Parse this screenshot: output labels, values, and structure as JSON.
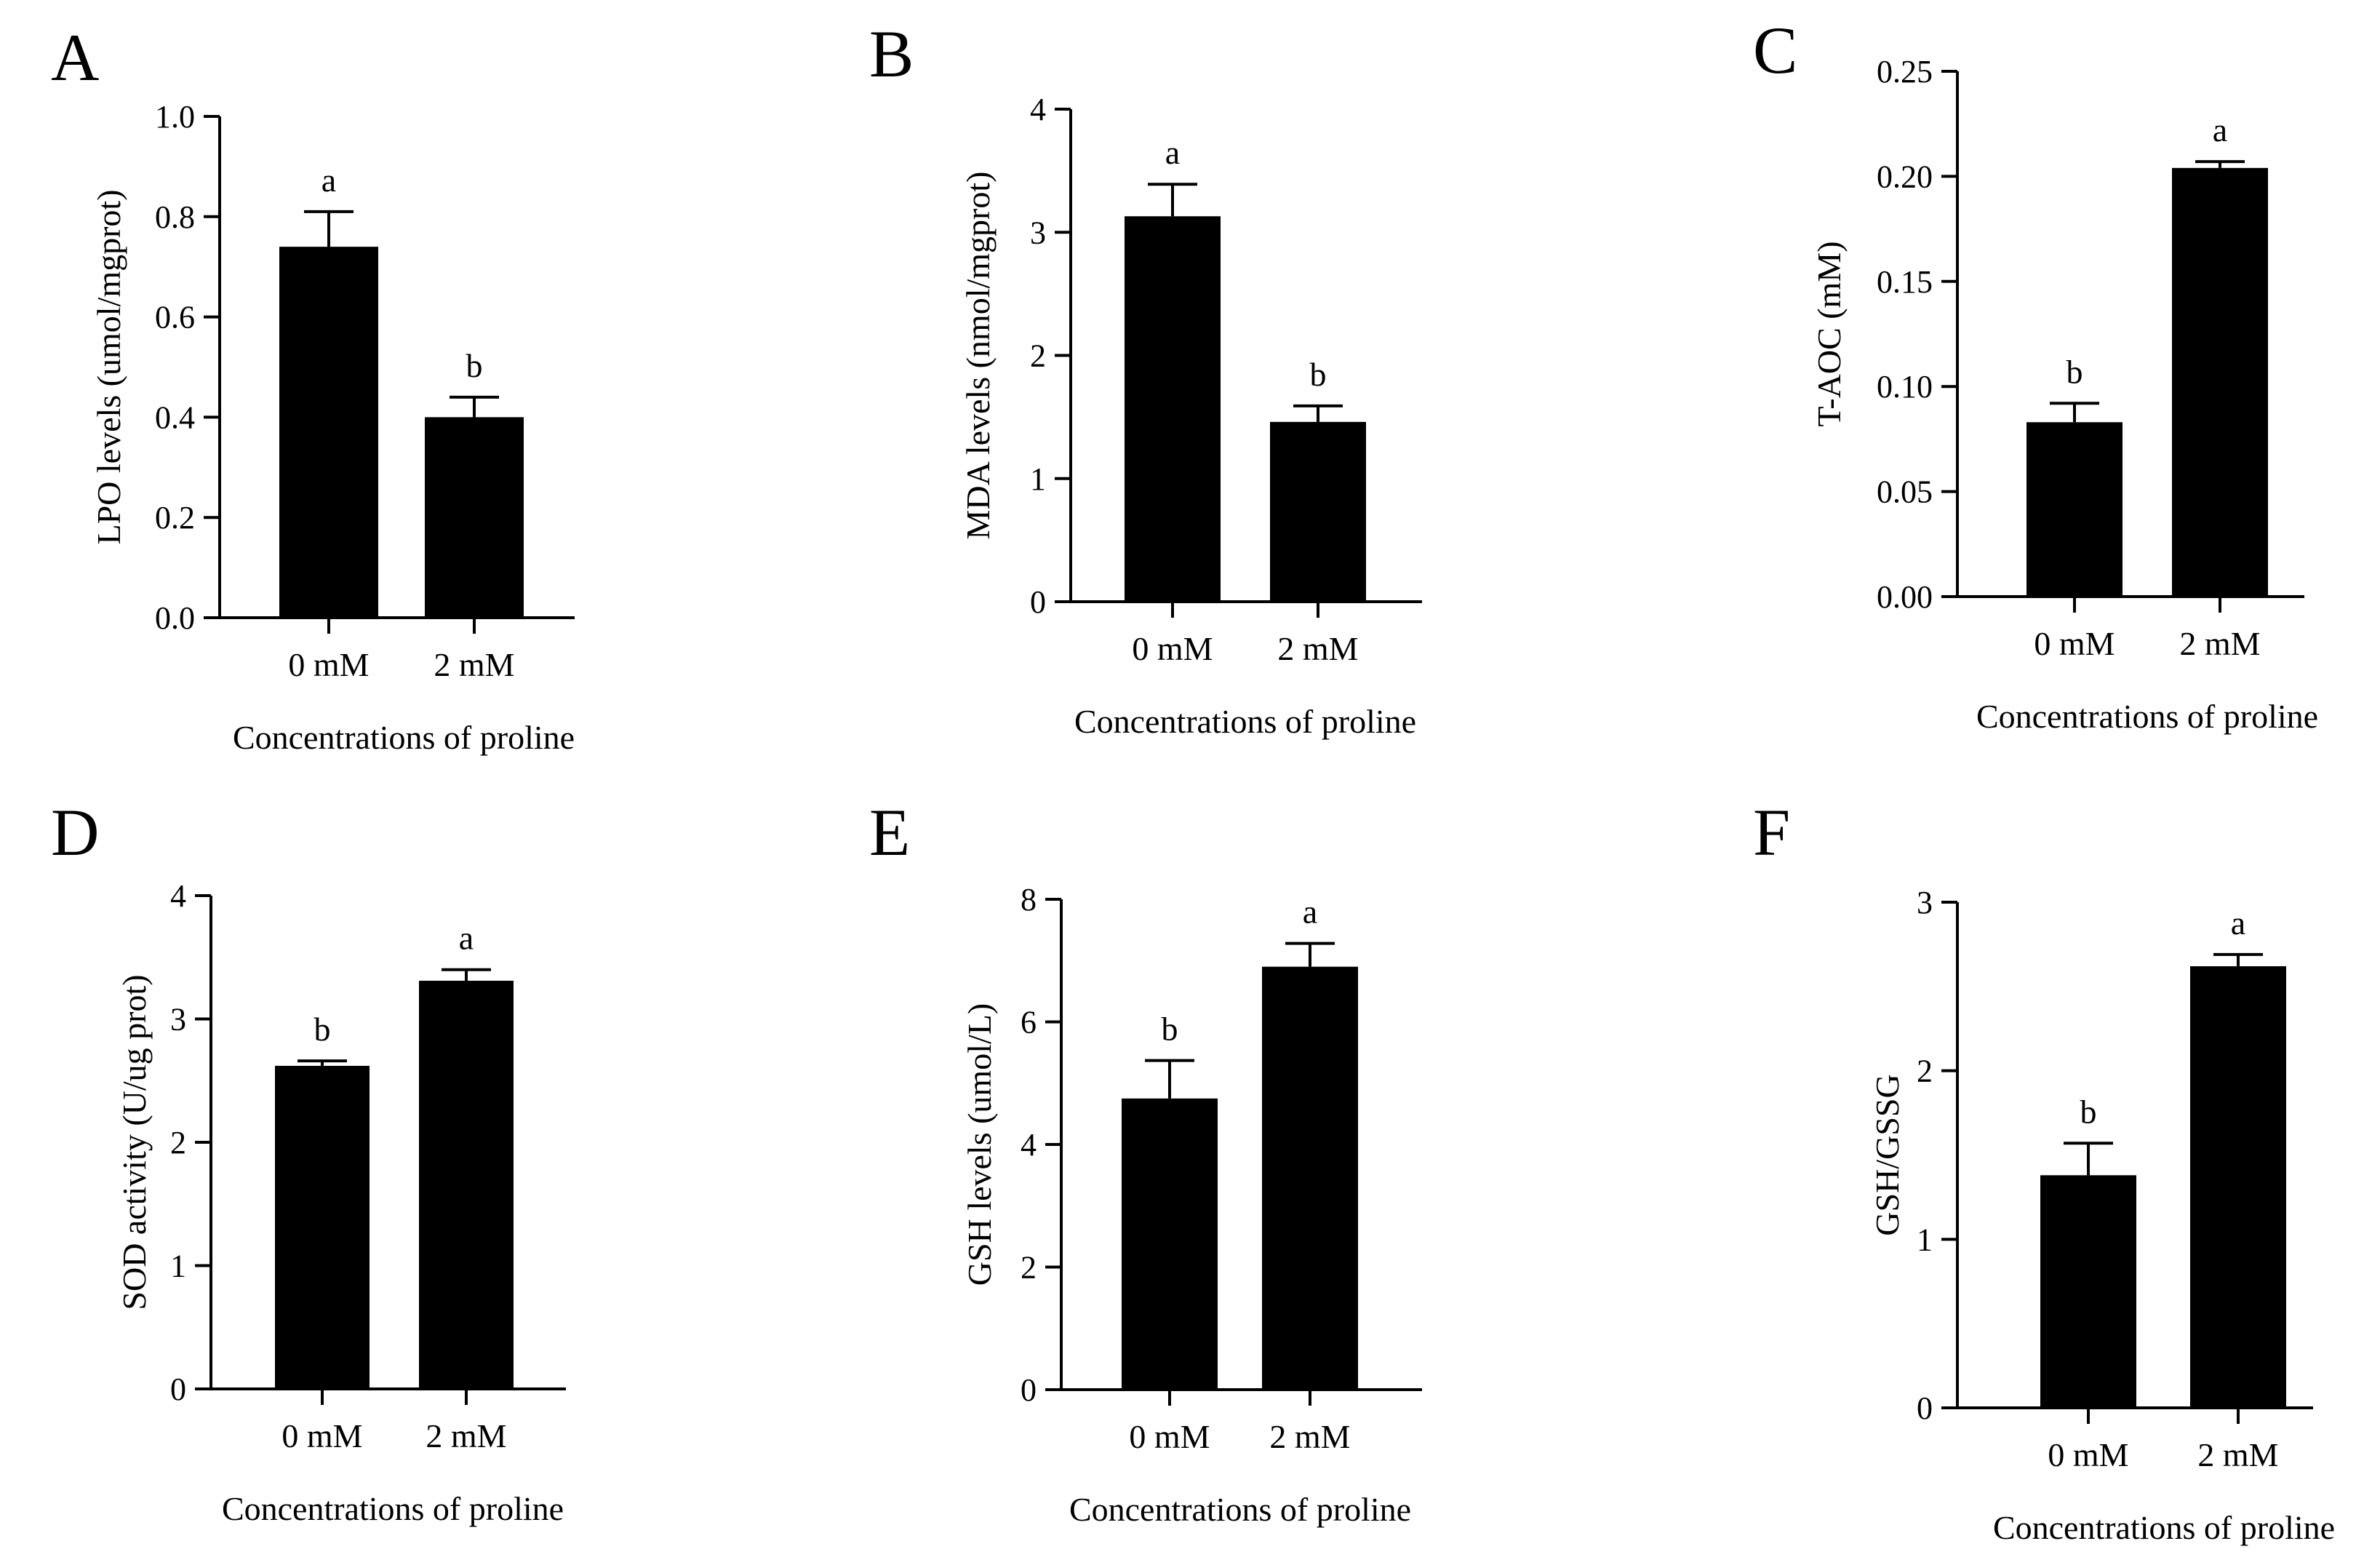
{
  "figure": {
    "colors": {
      "bar": "#000000",
      "axis": "#000000",
      "background": "#ffffff"
    }
  },
  "chart_data": [
    {
      "panel_label": "A",
      "type": "bar",
      "categories": [
        "0 mM",
        "2 mM"
      ],
      "values": [
        0.74,
        0.4
      ],
      "errors": [
        0.07,
        0.04
      ],
      "significance": [
        "a",
        "b"
      ],
      "xlabel": "Concentrations of proline",
      "ylabel": "LPO levels (umol/mgprot)",
      "ylim": [
        0,
        1.0
      ],
      "yticks": [
        "0.0",
        "0.2",
        "0.4",
        "0.6",
        "0.8",
        "1.0"
      ],
      "ytick_values": [
        0,
        0.2,
        0.4,
        0.6,
        0.8,
        1.0
      ],
      "grid": false
    },
    {
      "panel_label": "B",
      "type": "bar",
      "categories": [
        "0 mM",
        "2 mM"
      ],
      "values": [
        3.13,
        1.46
      ],
      "errors": [
        0.26,
        0.13
      ],
      "significance": [
        "a",
        "b"
      ],
      "xlabel": "Concentrations of proline",
      "ylabel": "MDA levels (nmol/mgprot)",
      "ylim": [
        0,
        4
      ],
      "yticks": [
        "0",
        "1",
        "2",
        "3",
        "4"
      ],
      "ytick_values": [
        0,
        1,
        2,
        3,
        4
      ],
      "grid": false
    },
    {
      "panel_label": "C",
      "type": "bar",
      "categories": [
        "0 mM",
        "2 mM"
      ],
      "values": [
        0.083,
        0.204
      ],
      "errors": [
        0.009,
        0.003
      ],
      "significance": [
        "b",
        "a"
      ],
      "xlabel": "Concentrations of proline",
      "ylabel": "T-AOC (mM)",
      "ylim": [
        0,
        0.25
      ],
      "yticks": [
        "0.00",
        "0.05",
        "0.10",
        "0.15",
        "0.20",
        "0.25"
      ],
      "ytick_values": [
        0,
        0.05,
        0.1,
        0.15,
        0.2,
        0.25
      ],
      "grid": false
    },
    {
      "panel_label": "D",
      "type": "bar",
      "categories": [
        "0 mM",
        "2 mM"
      ],
      "values": [
        2.62,
        3.31
      ],
      "errors": [
        0.04,
        0.09
      ],
      "significance": [
        "b",
        "a"
      ],
      "xlabel": "Concentrations of proline",
      "ylabel": "SOD activity (U/ug prot)",
      "ylim": [
        0,
        4
      ],
      "yticks": [
        "0",
        "1",
        "2",
        "3",
        "4"
      ],
      "ytick_values": [
        0,
        1,
        2,
        3,
        4
      ],
      "grid": false
    },
    {
      "panel_label": "E",
      "type": "bar",
      "categories": [
        "0 mM",
        "2 mM"
      ],
      "values": [
        4.75,
        6.9
      ],
      "errors": [
        0.62,
        0.38
      ],
      "significance": [
        "b",
        "a"
      ],
      "xlabel": "Concentrations of proline",
      "ylabel": "GSH levels (umol/L)",
      "ylim": [
        0,
        8
      ],
      "yticks": [
        "0",
        "2",
        "4",
        "6",
        "8"
      ],
      "ytick_values": [
        0,
        2,
        4,
        6,
        8
      ],
      "grid": false
    },
    {
      "panel_label": "F",
      "type": "bar",
      "categories": [
        "0 mM",
        "2 mM"
      ],
      "values": [
        1.38,
        2.62
      ],
      "errors": [
        0.19,
        0.07
      ],
      "significance": [
        "b",
        "a"
      ],
      "xlabel": "Concentrations of proline",
      "ylabel": "GSH/GSSG",
      "ylim": [
        0,
        3
      ],
      "yticks": [
        "0",
        "1",
        "2",
        "3"
      ],
      "ytick_values": [
        0,
        1,
        2,
        3
      ],
      "grid": false
    }
  ]
}
